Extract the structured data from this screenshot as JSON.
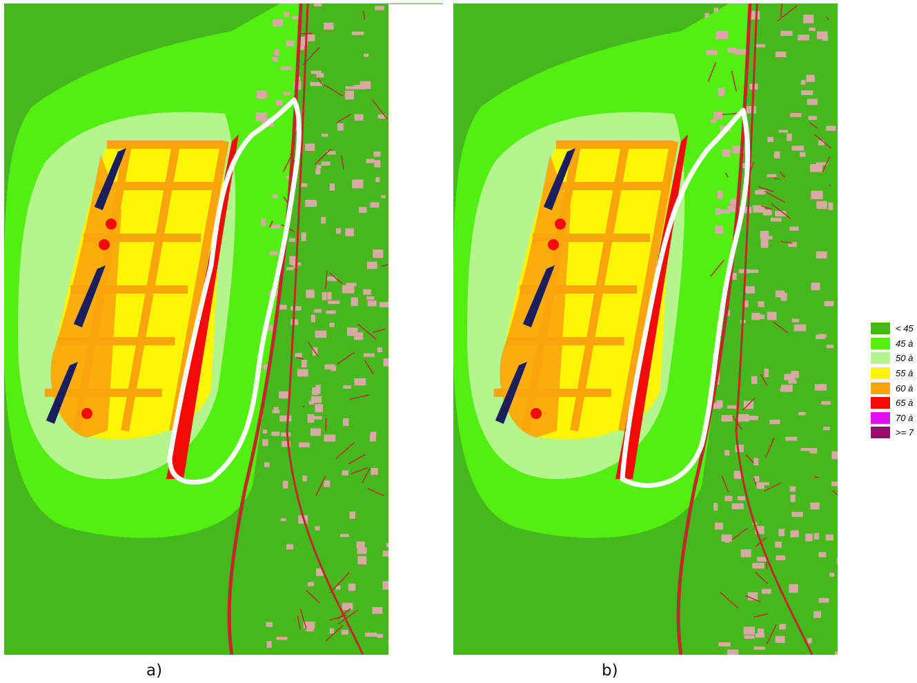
{
  "panels": [
    {
      "id": "a",
      "caption": "a)"
    },
    {
      "id": "b",
      "caption": "b)"
    }
  ],
  "legend": {
    "items": [
      {
        "label": "< 45",
        "color": "#46b81e"
      },
      {
        "label": "45 à",
        "color": "#52ef10"
      },
      {
        "label": "50 à",
        "color": "#b4f590"
      },
      {
        "label": "55 à",
        "color": "#fcf506"
      },
      {
        "label": "60 à",
        "color": "#fba50c"
      },
      {
        "label": "65 à",
        "color": "#f50a0a"
      },
      {
        "label": "70 à",
        "color": "#e40cf5"
      },
      {
        "label": ">= 7",
        "color": "#9c0a6e"
      }
    ]
  },
  "colors": {
    "background_lt45": "#46b81e",
    "zone_45_50": "#52ef10",
    "zone_50_55": "#b4f590",
    "zone_55_60": "#fcf506",
    "zone_60_65": "#fba50c",
    "zone_65_70": "#f50a0a",
    "roads": "#c0282a",
    "buildings": "#d9a9a6",
    "ships": "#1a1f5c",
    "outline": "#ffffff"
  }
}
